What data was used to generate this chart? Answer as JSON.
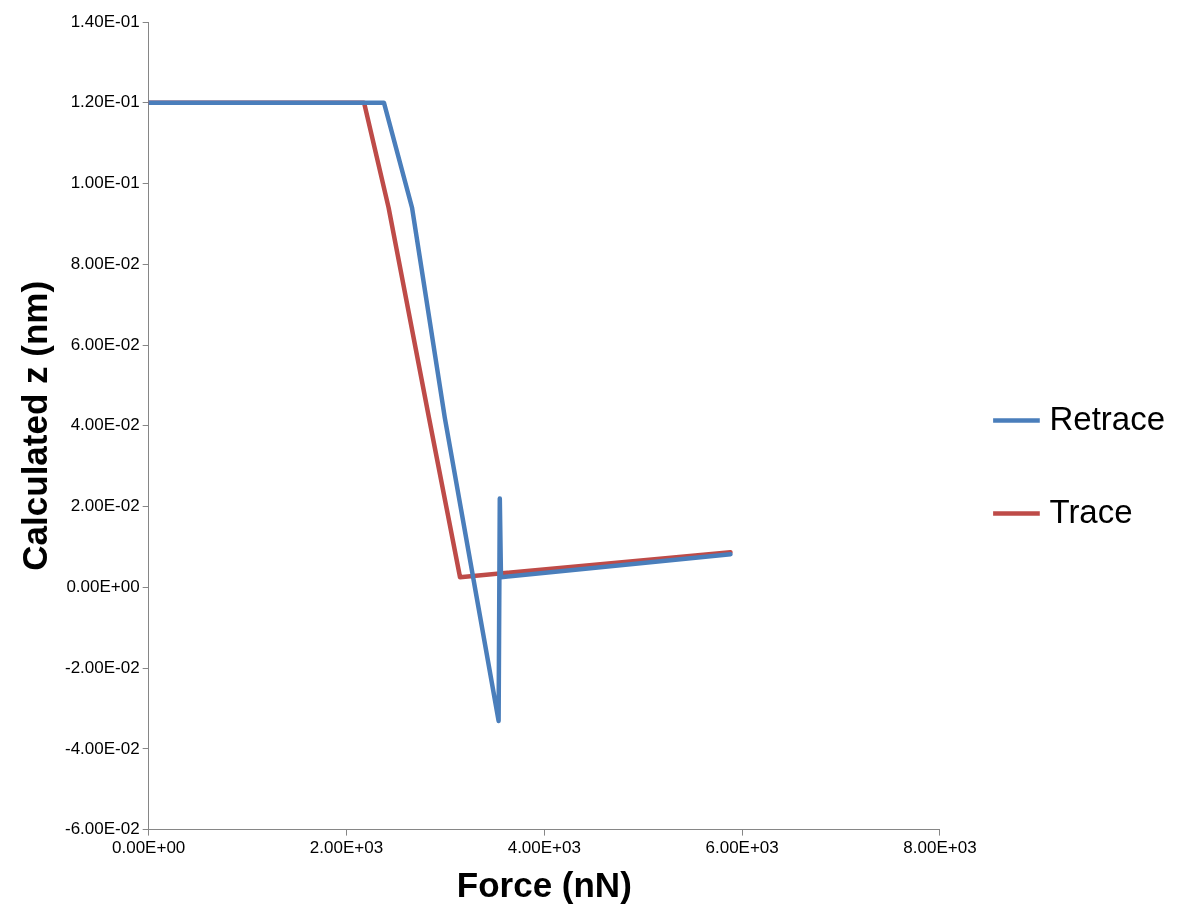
{
  "chart_data": {
    "type": "line",
    "xlabel": "Force (nN)",
    "ylabel": "Calculated z (nm)",
    "xlim": [
      0,
      8000
    ],
    "xticks": [
      {
        "value": 0,
        "label": "0.00E+00"
      },
      {
        "value": 2000,
        "label": "2.00E+03"
      },
      {
        "value": 4000,
        "label": "4.00E+03"
      },
      {
        "value": 6000,
        "label": "6.00E+03"
      },
      {
        "value": 8000,
        "label": "8.00E+03"
      }
    ],
    "ylim": [
      -0.06,
      0.14
    ],
    "yticks": [
      {
        "value": -0.06,
        "label": "-6.00E-02"
      },
      {
        "value": -0.04,
        "label": "-4.00E-02"
      },
      {
        "value": -0.02,
        "label": "-2.00E-02"
      },
      {
        "value": 0,
        "label": "0.00E+00"
      },
      {
        "value": 0.02,
        "label": "2.00E-02"
      },
      {
        "value": 0.04,
        "label": "4.00E-02"
      },
      {
        "value": 0.06,
        "label": "6.00E-02"
      },
      {
        "value": 0.08,
        "label": "8.00E-02"
      },
      {
        "value": 0.1,
        "label": "1.00E-01"
      },
      {
        "value": 0.12,
        "label": "1.20E-01"
      },
      {
        "value": 0.14,
        "label": "1.40E-01"
      }
    ],
    "grid": false,
    "legend": "right",
    "marker": "none",
    "line_style": "solid",
    "series": [
      {
        "name": "Retrace",
        "color": "#4a7ebb",
        "x": [
          0,
          2379,
          2663,
          2994,
          3538,
          3550,
          3562,
          5882
        ],
        "values": [
          0.12,
          0.12,
          0.094,
          0.042,
          -0.0331,
          0.022,
          0.0025,
          0.0082
        ]
      },
      {
        "name": "Trace",
        "color": "#be4b48",
        "x": [
          0,
          2178,
          2426,
          2834,
          3148,
          5882
        ],
        "values": [
          0.12,
          0.12,
          0.094,
          0.042,
          0.0025,
          0.0087
        ]
      }
    ]
  }
}
